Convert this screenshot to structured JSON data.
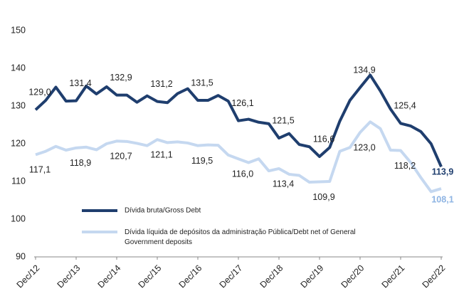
{
  "chart_data": {
    "type": "line",
    "categories": [
      "Dec/12",
      null,
      null,
      null,
      "Dec/13",
      null,
      null,
      null,
      "Dec/14",
      null,
      null,
      null,
      "Dec/15",
      null,
      null,
      null,
      "Dec/16",
      null,
      null,
      null,
      "Dec/17",
      null,
      null,
      null,
      "Dec/18",
      null,
      null,
      null,
      "Dec/19",
      null,
      null,
      null,
      "Dec/20",
      null,
      null,
      null,
      "Dec/21",
      null,
      null,
      null,
      "Dec/22"
    ],
    "series": [
      {
        "name": "Dívida bruta/Gross Debt",
        "color": "#1f3e6e",
        "values": [
          129.0,
          131.5,
          135.0,
          131.3,
          131.4,
          135.3,
          133.2,
          135.1,
          132.9,
          132.9,
          131.0,
          132.7,
          131.2,
          130.9,
          133.3,
          134.6,
          131.5,
          131.5,
          132.8,
          131.3,
          126.1,
          126.5,
          125.7,
          125.3,
          121.5,
          122.7,
          119.8,
          119.2,
          116.6,
          119.0,
          126.0,
          131.5,
          134.9,
          138.2,
          134.0,
          129.2,
          125.4,
          124.7,
          123.2,
          120.0,
          113.9
        ],
        "value_labels": [
          "129,0",
          null,
          null,
          null,
          "131,4",
          null,
          null,
          null,
          "132,9",
          null,
          null,
          null,
          "131,2",
          null,
          null,
          null,
          "131,5",
          null,
          null,
          null,
          "126,1",
          null,
          null,
          null,
          "121,5",
          null,
          null,
          null,
          "116,6",
          null,
          null,
          null,
          "134,9",
          null,
          null,
          null,
          "125,4",
          null,
          null,
          null,
          "113,9"
        ]
      },
      {
        "name": "Dívida líquida de depósitos da administração Pública/Debt net of General Government deposits",
        "color": "#c5d8f0",
        "values": [
          117.1,
          118.0,
          119.3,
          118.3,
          118.9,
          119.1,
          118.4,
          120.0,
          120.7,
          120.6,
          120.1,
          119.5,
          121.1,
          120.3,
          120.5,
          120.2,
          119.5,
          119.7,
          119.6,
          117.0,
          116.0,
          115.0,
          116.0,
          112.8,
          113.4,
          111.9,
          111.6,
          109.8,
          109.9,
          110.0,
          118.0,
          119.0,
          123.0,
          125.8,
          124.0,
          118.3,
          118.2,
          115.0,
          111.0,
          107.3,
          108.1
        ],
        "value_labels": [
          "117,1",
          null,
          null,
          null,
          "118,9",
          null,
          null,
          null,
          "120,7",
          null,
          null,
          null,
          "121,1",
          null,
          null,
          null,
          "119,5",
          null,
          null,
          null,
          "116,0",
          null,
          null,
          null,
          "113,4",
          null,
          null,
          null,
          "109,9",
          null,
          null,
          null,
          "123,0",
          null,
          null,
          null,
          "118,2",
          null,
          null,
          null,
          "108,1"
        ]
      }
    ],
    "ylim": [
      90,
      150
    ],
    "yticks": [
      90,
      100,
      110,
      120,
      130,
      140,
      150
    ],
    "grid": false
  }
}
